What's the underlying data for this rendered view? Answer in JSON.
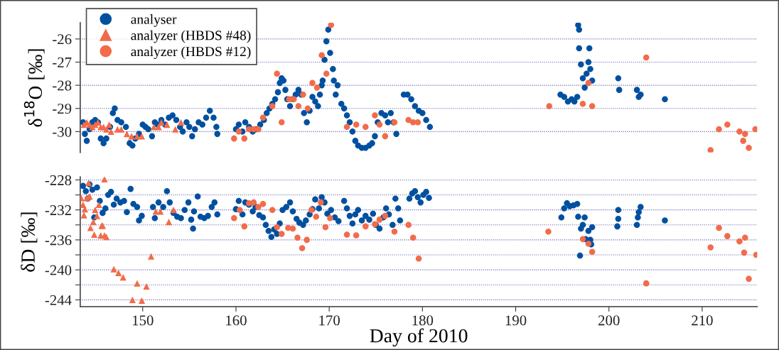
{
  "chart_data": [
    {
      "type": "scatter",
      "ylabel": "δ$^{18}$O [‰]",
      "xlim": [
        143.3,
        215.9
      ],
      "ylim": [
        -30.9,
        -25.3
      ],
      "yticks": [
        -30,
        -29,
        -28,
        -27,
        -26
      ],
      "grid": "y",
      "legend": "top left",
      "tick_labels": "y",
      "series": [
        {
          "name": "analyser",
          "color": "#0050a0",
          "marker": "circle",
          "x": [
            143.6,
            143.8,
            144.0,
            144.3,
            144.6,
            144.9,
            145.2,
            145.5,
            145.8,
            146.1,
            146.5,
            146.8,
            147.0,
            147.3,
            147.7,
            148.2,
            148.6,
            148.9,
            149.2,
            149.6,
            150.0,
            150.3,
            150.6,
            151.0,
            151.3,
            151.6,
            152.0,
            152.4,
            152.8,
            153.2,
            153.6,
            154.0,
            154.3,
            154.7,
            155.0,
            155.3,
            155.6,
            156.0,
            156.4,
            156.8,
            157.2,
            157.6,
            157.9,
            158.0,
            160.0,
            160.3,
            160.7,
            161.0,
            161.4,
            161.8,
            162.2,
            162.6,
            163.0,
            163.3,
            163.6,
            163.9,
            164.2,
            164.5,
            164.7,
            164.9,
            165.1,
            165.3,
            165.5,
            165.8,
            166.1,
            166.4,
            166.7,
            167.0,
            167.3,
            167.6,
            167.9,
            168.2,
            168.5,
            168.8,
            169.0,
            169.2,
            169.3,
            169.5,
            169.7,
            169.9,
            170.1,
            170.4,
            170.5,
            170.7,
            170.9,
            171.3,
            171.6,
            171.9,
            172.2,
            172.5,
            172.8,
            173.1,
            173.5,
            173.9,
            174.3,
            174.6,
            174.9,
            175.2,
            175.6,
            176.0,
            176.3,
            176.6,
            176.9,
            177.2,
            178.0,
            178.4,
            178.8,
            179.2,
            179.6,
            180.0,
            180.4,
            180.8,
            194.8,
            195.2,
            195.6,
            196.0,
            196.3,
            196.6,
            196.7,
            196.8,
            196.8,
            197.0,
            197.2,
            197.4,
            197.6,
            197.8,
            197.9,
            198.0,
            198.2,
            201.0,
            201.1,
            203.0,
            203.2,
            203.4,
            206.0
          ],
          "values": [
            -29.6,
            -30.1,
            -30.4,
            -29.9,
            -29.6,
            -29.5,
            -29.6,
            -30.3,
            -30.5,
            -30.3,
            -29.8,
            -29.2,
            -29.0,
            -29.5,
            -29.6,
            -29.8,
            -30.5,
            -30.6,
            -30.3,
            -30.1,
            -29.7,
            -29.8,
            -29.9,
            -30.2,
            -29.6,
            -29.7,
            -29.5,
            -29.7,
            -29.4,
            -29.3,
            -29.5,
            -29.8,
            -30.0,
            -29.6,
            -29.8,
            -30.2,
            -29.9,
            -29.6,
            -29.7,
            -29.4,
            -29.1,
            -29.4,
            -29.8,
            -30.1,
            -29.9,
            -29.7,
            -30.0,
            -29.6,
            -29.8,
            -30.0,
            -29.9,
            -29.7,
            -29.5,
            -29.2,
            -29.0,
            -28.8,
            -28.6,
            -28.3,
            -27.9,
            -27.7,
            -27.8,
            -28.2,
            -28.6,
            -28.9,
            -28.6,
            -28.4,
            -28.2,
            -28.4,
            -29.2,
            -29.6,
            -29.1,
            -28.5,
            -28.7,
            -28.9,
            -28.4,
            -28.0,
            -27.8,
            -26.9,
            -26.1,
            -25.6,
            -26.6,
            -27.3,
            -27.8,
            -28.4,
            -28.0,
            -28.8,
            -29.0,
            -29.3,
            -29.6,
            -30.0,
            -30.4,
            -30.6,
            -30.7,
            -30.7,
            -30.6,
            -30.5,
            -30.2,
            -29.6,
            -29.2,
            -29.3,
            -29.6,
            -29.2,
            -29.6,
            -30.1,
            -28.4,
            -28.4,
            -28.6,
            -28.9,
            -29.1,
            -29.2,
            -29.5,
            -29.8,
            -28.4,
            -28.5,
            -28.7,
            -28.6,
            -28.7,
            -28.5,
            -25.4,
            -25.6,
            -26.4,
            -27.1,
            -27.7,
            -28.1,
            -27.5,
            -27.0,
            -26.4,
            -27.3,
            -27.8,
            -27.7,
            -28.2,
            -28.2,
            -28.5,
            -28.4,
            -28.6
          ]
        },
        {
          "name": "analyzer (HBDS #48)",
          "color": "#f26b4a",
          "marker": "triangle",
          "x": [
            143.7,
            144.0,
            144.3,
            144.6,
            144.9,
            145.2,
            145.5,
            145.8,
            146.1,
            146.4,
            146.6,
            147.3,
            147.7,
            148.3,
            148.8,
            149.4,
            149.9,
            151.2,
            151.7,
            152.0,
            152.6,
            153.5,
            154.1
          ],
          "values": [
            -29.7,
            -29.6,
            -29.7,
            -29.8,
            -29.7,
            -29.6,
            -29.8,
            -29.8,
            -29.9,
            -29.7,
            -30.0,
            -29.9,
            -29.9,
            -30.1,
            -30.2,
            -30.2,
            -30.2,
            -29.8,
            -29.8,
            -29.6,
            -29.7,
            -29.9,
            -29.6
          ]
        },
        {
          "name": "analyzer (HBDS #12)",
          "color": "#f26b4a",
          "marker": "circle",
          "x": [
            159.8,
            160.3,
            160.9,
            161.4,
            161.9,
            162.4,
            162.9,
            163.9,
            164.4,
            164.9,
            165.7,
            166.2,
            166.7,
            167.2,
            167.7,
            168.2,
            168.7,
            169.2,
            169.7,
            170.2,
            171.9,
            172.9,
            173.9,
            174.9,
            175.4,
            176.0,
            177.0,
            178.5,
            179.0,
            179.5,
            193.6,
            197.2,
            197.8,
            198.2,
            204.0,
            210.9,
            211.8,
            212.7,
            214.0,
            214.4,
            214.6,
            215.0,
            215.7
          ],
          "values": [
            -30.3,
            -30.0,
            -30.3,
            -29.9,
            -29.9,
            -29.9,
            -29.4,
            -28.9,
            -27.5,
            -29.6,
            -28.6,
            -28.6,
            -28.9,
            -28.4,
            -29.0,
            -27.9,
            -28.1,
            -26.7,
            -27.5,
            -25.4,
            -29.8,
            -29.7,
            -29.8,
            -29.3,
            -29.7,
            -30.2,
            -29.6,
            -29.5,
            -29.6,
            -29.6,
            -28.9,
            -28.8,
            -27.9,
            -28.9,
            -26.8,
            -30.8,
            -29.9,
            -29.7,
            -30.0,
            -30.4,
            -30.1,
            -30.7,
            -29.9
          ]
        }
      ]
    },
    {
      "type": "scatter",
      "xlabel": "Day of 2010",
      "ylabel": "δD [‰]",
      "xlim": [
        143.3,
        215.9
      ],
      "xticks": [
        150,
        160,
        170,
        180,
        190,
        200,
        210
      ],
      "ylim": [
        -244.9,
        -227.6
      ],
      "yticks": [
        -228,
        {
          "value": -230,
          "label": null
        },
        -232,
        {
          "value": -234,
          "label": null
        },
        -236,
        {
          "value": -238,
          "label": null
        },
        -240,
        {
          "value": -242,
          "label": null
        },
        -244
      ],
      "grid": "y",
      "series": [
        {
          "color": "#0050a0",
          "marker": "circle",
          "x": [
            143.6,
            143.9,
            144.1,
            144.3,
            144.6,
            144.8,
            145.1,
            145.4,
            145.7,
            146.0,
            146.3,
            146.6,
            146.9,
            147.2,
            147.6,
            148.0,
            148.3,
            148.7,
            149.0,
            149.4,
            149.6,
            149.9,
            151.1,
            151.3,
            151.7,
            152.2,
            152.6,
            152.9,
            153.3,
            153.7,
            154.1,
            154.5,
            154.9,
            155.2,
            155.4,
            155.5,
            155.9,
            156.2,
            156.6,
            157.0,
            157.4,
            157.7,
            158.0,
            160.0,
            160.3,
            160.7,
            161.0,
            161.4,
            161.8,
            162.1,
            162.5,
            162.9,
            163.2,
            163.5,
            163.8,
            164.1,
            164.4,
            164.7,
            165.0,
            165.4,
            165.8,
            166.1,
            166.5,
            166.8,
            167.2,
            167.5,
            167.9,
            168.2,
            168.5,
            168.9,
            169.2,
            169.5,
            169.8,
            170.2,
            170.6,
            171.0,
            171.6,
            171.9,
            172.2,
            172.5,
            172.8,
            173.1,
            173.5,
            173.9,
            174.3,
            174.7,
            175.0,
            175.4,
            175.8,
            176.1,
            176.4,
            176.8,
            177.1,
            177.4,
            177.6,
            178.6,
            178.9,
            179.2,
            179.5,
            179.8,
            180.1,
            180.4,
            180.7,
            194.9,
            195.2,
            195.5,
            195.8,
            196.2,
            196.6,
            196.7,
            196.9,
            197.0,
            197.2,
            197.4,
            197.5,
            197.8,
            198.0,
            198.1,
            198.2,
            201.0,
            201.0,
            200.9,
            203.0,
            203.1,
            203.2,
            203.4,
            206.0
          ],
          "values": [
            -228.8,
            -229.5,
            -230.5,
            -228.6,
            -229.3,
            -233.0,
            -229.0,
            -230.8,
            -232.4,
            -231.8,
            -230.0,
            -229.6,
            -231.3,
            -230.5,
            -231.0,
            -230.8,
            -232.3,
            -229.2,
            -231.2,
            -231.6,
            -233.4,
            -232.8,
            -231.6,
            -233.1,
            -231.0,
            -231.6,
            -229.5,
            -231.0,
            -232.4,
            -232.9,
            -233.1,
            -232.0,
            -231.0,
            -233.3,
            -234.5,
            -232.2,
            -230.2,
            -232.9,
            -233.1,
            -232.8,
            -231.6,
            -231.0,
            -232.6,
            -231.9,
            -230.8,
            -232.6,
            -231.0,
            -231.3,
            -232.2,
            -231.6,
            -232.7,
            -233.0,
            -234.0,
            -234.8,
            -235.6,
            -234.6,
            -235.2,
            -233.8,
            -232.0,
            -231.6,
            -231.0,
            -232.2,
            -233.2,
            -233.7,
            -234.0,
            -233.4,
            -232.6,
            -231.9,
            -230.6,
            -231.8,
            -230.3,
            -231.0,
            -232.5,
            -232.0,
            -233.0,
            -233.5,
            -230.8,
            -231.8,
            -232.8,
            -233.8,
            -232.6,
            -232.0,
            -233.4,
            -232.8,
            -233.3,
            -232.5,
            -234.0,
            -234.5,
            -233.0,
            -231.8,
            -232.6,
            -234.0,
            -230.5,
            -231.8,
            -233.4,
            -230.5,
            -229.8,
            -229.5,
            -230.3,
            -231.0,
            -230.0,
            -229.6,
            -230.4,
            -233.0,
            -231.8,
            -231.1,
            -231.5,
            -231.4,
            -231.2,
            -232.9,
            -238.1,
            -234.5,
            -234.0,
            -233.0,
            -235.9,
            -234.8,
            -236.0,
            -236.6,
            -234.3,
            -232.0,
            -233.2,
            -234.2,
            -234.0,
            -233.0,
            -232.3,
            -231.6,
            -233.4
          ]
        },
        {
          "color": "#f26b4a",
          "marker": "triangle",
          "x": [
            143.4,
            143.6,
            143.8,
            144.0,
            144.2,
            144.3,
            143.7,
            144.4,
            144.7,
            144.8,
            144.9,
            145.1,
            145.3,
            145.5,
            145.6,
            145.7,
            145.9,
            145.9,
            146.1,
            146.9,
            147.4,
            147.9,
            148.9,
            149.4,
            149.9,
            150.4,
            150.9,
            151.4,
            151.9,
            152.8,
            153.3
          ],
          "values": [
            -230.4,
            -231.3,
            -231.9,
            -230.4,
            -228.4,
            -230.2,
            -232.7,
            -234.4,
            -233.6,
            -235.3,
            -232.0,
            -232.8,
            -231.3,
            -235.4,
            -234.1,
            -234.1,
            -235.4,
            -227.9,
            -235.6,
            -239.9,
            -240.4,
            -241.0,
            -244.0,
            -241.8,
            -244.1,
            -242.2,
            -238.2,
            -232.2,
            -232.2,
            -233.6,
            -232.0
          ]
        },
        {
          "color": "#f26b4a",
          "marker": "circle",
          "x": [
            159.8,
            160.4,
            160.9,
            161.4,
            161.9,
            162.4,
            162.9,
            163.9,
            164.4,
            164.9,
            165.6,
            166.1,
            166.6,
            167.1,
            167.6,
            168.1,
            168.6,
            169.1,
            169.6,
            170.1,
            171.9,
            172.9,
            173.9,
            174.9,
            175.4,
            176.0,
            177.0,
            178.5,
            179.0,
            179.6,
            193.5,
            197.2,
            197.8,
            198.2,
            204.0,
            210.9,
            211.8,
            212.7,
            214.0,
            214.6,
            214.5,
            215.0,
            215.8
          ],
          "values": [
            -233.1,
            -232.0,
            -234.2,
            -231.1,
            -231.0,
            -231.6,
            -231.2,
            -232.0,
            -234.3,
            -235.2,
            -234.4,
            -234.5,
            -235.7,
            -237.1,
            -236.0,
            -232.0,
            -232.9,
            -231.0,
            -234.3,
            -233.1,
            -235.3,
            -235.4,
            -234.2,
            -233.9,
            -233.3,
            -232.8,
            -234.9,
            -234.0,
            -235.7,
            -238.5,
            -234.9,
            -235.9,
            -236.5,
            -237.6,
            -241.8,
            -237.0,
            -234.4,
            -235.5,
            -236.2,
            -235.7,
            -237.7,
            -241.2,
            -238.0
          ]
        }
      ]
    }
  ]
}
